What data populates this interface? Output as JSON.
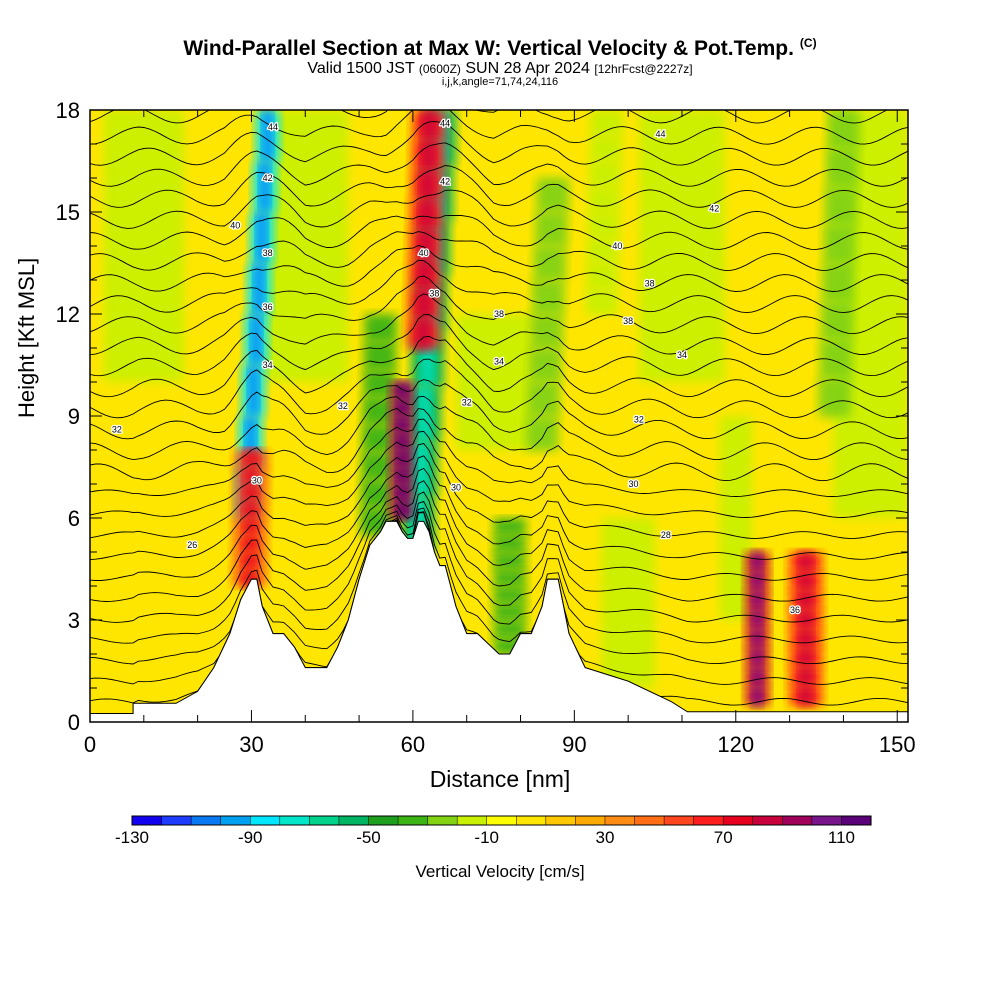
{
  "header": {
    "title": "Wind-Parallel Section at Max W: Vertical Velocity & Pot.Temp.",
    "copyright": "(C)",
    "valid_prefix": "Valid 1500 JST",
    "valid_utc": "(0600Z)",
    "valid_date": "SUN 28 Apr 2024",
    "forecast": "[12hrFcst@2227z]",
    "indices": "i,j,k,angle=71,74,24,116"
  },
  "chart_data": {
    "type": "heatmap",
    "title": "Wind-Parallel Section at Max W: Vertical Velocity & Pot.Temp.",
    "xlabel": "Distance [nm]",
    "ylabel": "Height [Kft MSL]",
    "xlim": [
      0,
      152
    ],
    "ylim": [
      0,
      18
    ],
    "x_ticks": [
      "0",
      "30",
      "60",
      "90",
      "120",
      "150"
    ],
    "y_ticks": [
      "0",
      "3",
      "6",
      "9",
      "12",
      "15",
      "18"
    ],
    "colorbar": {
      "label": "Vertical Velocity [cm/s]",
      "tick_labels": [
        "-130",
        "-90",
        "-50",
        "-10",
        "30",
        "70",
        "110"
      ],
      "colors": [
        "#1400f0",
        "#1e3cff",
        "#0a78f0",
        "#00a0f0",
        "#00e6ff",
        "#00e6c8",
        "#00d28c",
        "#00b464",
        "#1ea01e",
        "#3cb414",
        "#82d214",
        "#c8f000",
        "#ffff00",
        "#ffe600",
        "#ffc800",
        "#ffaa00",
        "#ff8c14",
        "#ff6e14",
        "#ff461e",
        "#ff1e1e",
        "#e6001e",
        "#c8003c",
        "#a0005a",
        "#78148c",
        "#5a0078"
      ]
    },
    "terrain_profile": [
      [
        0,
        0.25
      ],
      [
        8,
        0.25
      ],
      [
        8,
        0.55
      ],
      [
        16,
        0.55
      ],
      [
        20,
        0.9
      ],
      [
        23,
        1.6
      ],
      [
        26,
        2.6
      ],
      [
        28,
        3.6
      ],
      [
        30,
        4.2
      ],
      [
        31,
        4.2
      ],
      [
        32,
        3.4
      ],
      [
        34,
        2.6
      ],
      [
        36,
        2.6
      ],
      [
        38,
        2.2
      ],
      [
        40,
        1.6
      ],
      [
        42,
        1.6
      ],
      [
        44,
        1.6
      ],
      [
        46,
        2.2
      ],
      [
        48,
        3.0
      ],
      [
        50,
        4.2
      ],
      [
        52,
        5.2
      ],
      [
        54,
        5.6
      ],
      [
        55,
        5.9
      ],
      [
        57,
        5.9
      ],
      [
        58,
        5.6
      ],
      [
        59,
        5.4
      ],
      [
        60,
        5.4
      ],
      [
        61,
        5.9
      ],
      [
        62,
        5.9
      ],
      [
        63,
        5.6
      ],
      [
        64,
        5.0
      ],
      [
        65,
        4.6
      ],
      [
        66,
        4.6
      ],
      [
        67,
        4.0
      ],
      [
        68,
        3.4
      ],
      [
        70,
        2.6
      ],
      [
        72,
        2.6
      ],
      [
        74,
        2.3
      ],
      [
        76,
        2.0
      ],
      [
        78,
        2.0
      ],
      [
        80,
        2.6
      ],
      [
        82,
        2.6
      ],
      [
        84,
        3.4
      ],
      [
        85,
        4.2
      ],
      [
        87,
        4.2
      ],
      [
        88,
        3.4
      ],
      [
        89,
        2.6
      ],
      [
        92,
        1.6
      ],
      [
        96,
        1.4
      ],
      [
        100,
        1.2
      ],
      [
        104,
        0.9
      ],
      [
        108,
        0.6
      ],
      [
        111,
        0.3
      ],
      [
        152,
        0.3
      ]
    ],
    "theta_contours": [
      {
        "label": "26",
        "y": 5.2
      },
      {
        "label": "28",
        "y": 5.5
      },
      {
        "label": "30",
        "y": 7.0
      },
      {
        "label": "32",
        "y": 8.6
      },
      {
        "label": "34",
        "y": 10.6
      },
      {
        "label": "36",
        "y": 12.0
      },
      {
        "label": "38",
        "y": 12.9
      },
      {
        "label": "40",
        "y": 14.2
      },
      {
        "label": "42",
        "y": 15.4
      },
      {
        "label": "44",
        "y": 16.9
      }
    ],
    "theta_label_positions": [
      {
        "label": "26",
        "x": 19,
        "y": 5.2
      },
      {
        "label": "28",
        "x": 107,
        "y": 5.5
      },
      {
        "label": "30",
        "x": 31,
        "y": 7.1
      },
      {
        "label": "30",
        "x": 68,
        "y": 6.9
      },
      {
        "label": "30",
        "x": 101,
        "y": 7.0
      },
      {
        "label": "32",
        "x": 5,
        "y": 8.6
      },
      {
        "label": "32",
        "x": 47,
        "y": 9.3
      },
      {
        "label": "32",
        "x": 70,
        "y": 9.4
      },
      {
        "label": "32",
        "x": 102,
        "y": 8.9
      },
      {
        "label": "34",
        "x": 33,
        "y": 10.5
      },
      {
        "label": "34",
        "x": 76,
        "y": 10.6
      },
      {
        "label": "34",
        "x": 110,
        "y": 10.8
      },
      {
        "label": "36",
        "x": 33,
        "y": 12.2
      },
      {
        "label": "36",
        "x": 131,
        "y": 3.3
      },
      {
        "label": "38",
        "x": 64,
        "y": 12.6
      },
      {
        "label": "38",
        "x": 76,
        "y": 12.0
      },
      {
        "label": "38",
        "x": 100,
        "y": 11.8
      },
      {
        "label": "38",
        "x": 33,
        "y": 13.8
      },
      {
        "label": "38",
        "x": 104,
        "y": 12.9
      },
      {
        "label": "40",
        "x": 27,
        "y": 14.6
      },
      {
        "label": "40",
        "x": 62,
        "y": 13.8
      },
      {
        "label": "40",
        "x": 98,
        "y": 14.0
      },
      {
        "label": "42",
        "x": 33,
        "y": 16.0
      },
      {
        "label": "42",
        "x": 66,
        "y": 15.9
      },
      {
        "label": "42",
        "x": 116,
        "y": 15.1
      },
      {
        "label": "44",
        "x": 34,
        "y": 17.5
      },
      {
        "label": "44",
        "x": 66,
        "y": 17.6
      },
      {
        "label": "44",
        "x": 106,
        "y": 17.3
      }
    ],
    "velocity_features": [
      {
        "x": 33,
        "ytop": 18,
        "ybot": 6,
        "value": -90,
        "tilt": 1.0
      },
      {
        "x": 65,
        "ytop": 18,
        "ybot": 5,
        "value": -60,
        "tilt": 1.0
      },
      {
        "x": 54,
        "ytop": 12,
        "ybot": 5.5,
        "value": -40,
        "tilt": 0.4
      },
      {
        "x": 58,
        "ytop": 10,
        "ybot": 6,
        "value": 90,
        "tilt": 0.1
      },
      {
        "x": 63,
        "ytop": 18,
        "ybot": 11,
        "value": 60,
        "tilt": 0.5
      },
      {
        "x": 78,
        "ytop": 6,
        "ybot": 2,
        "value": -40,
        "tilt": 0
      },
      {
        "x": 86,
        "ytop": 16,
        "ybot": 8,
        "value": -30,
        "tilt": 0.8
      },
      {
        "x": 96,
        "ytop": 18,
        "ybot": 12,
        "value": -20,
        "tilt": 0.5
      },
      {
        "x": 30,
        "ytop": 8,
        "ybot": 4,
        "value": 50,
        "tilt": 0.3
      },
      {
        "x": 124,
        "ytop": 5,
        "ybot": 0.5,
        "value": 80,
        "tilt": 0
      },
      {
        "x": 133,
        "ytop": 5,
        "ybot": 0.5,
        "value": 60,
        "tilt": 0
      },
      {
        "x": 140,
        "ytop": 18,
        "ybot": 9,
        "value": -25,
        "tilt": 0.6
      }
    ]
  }
}
